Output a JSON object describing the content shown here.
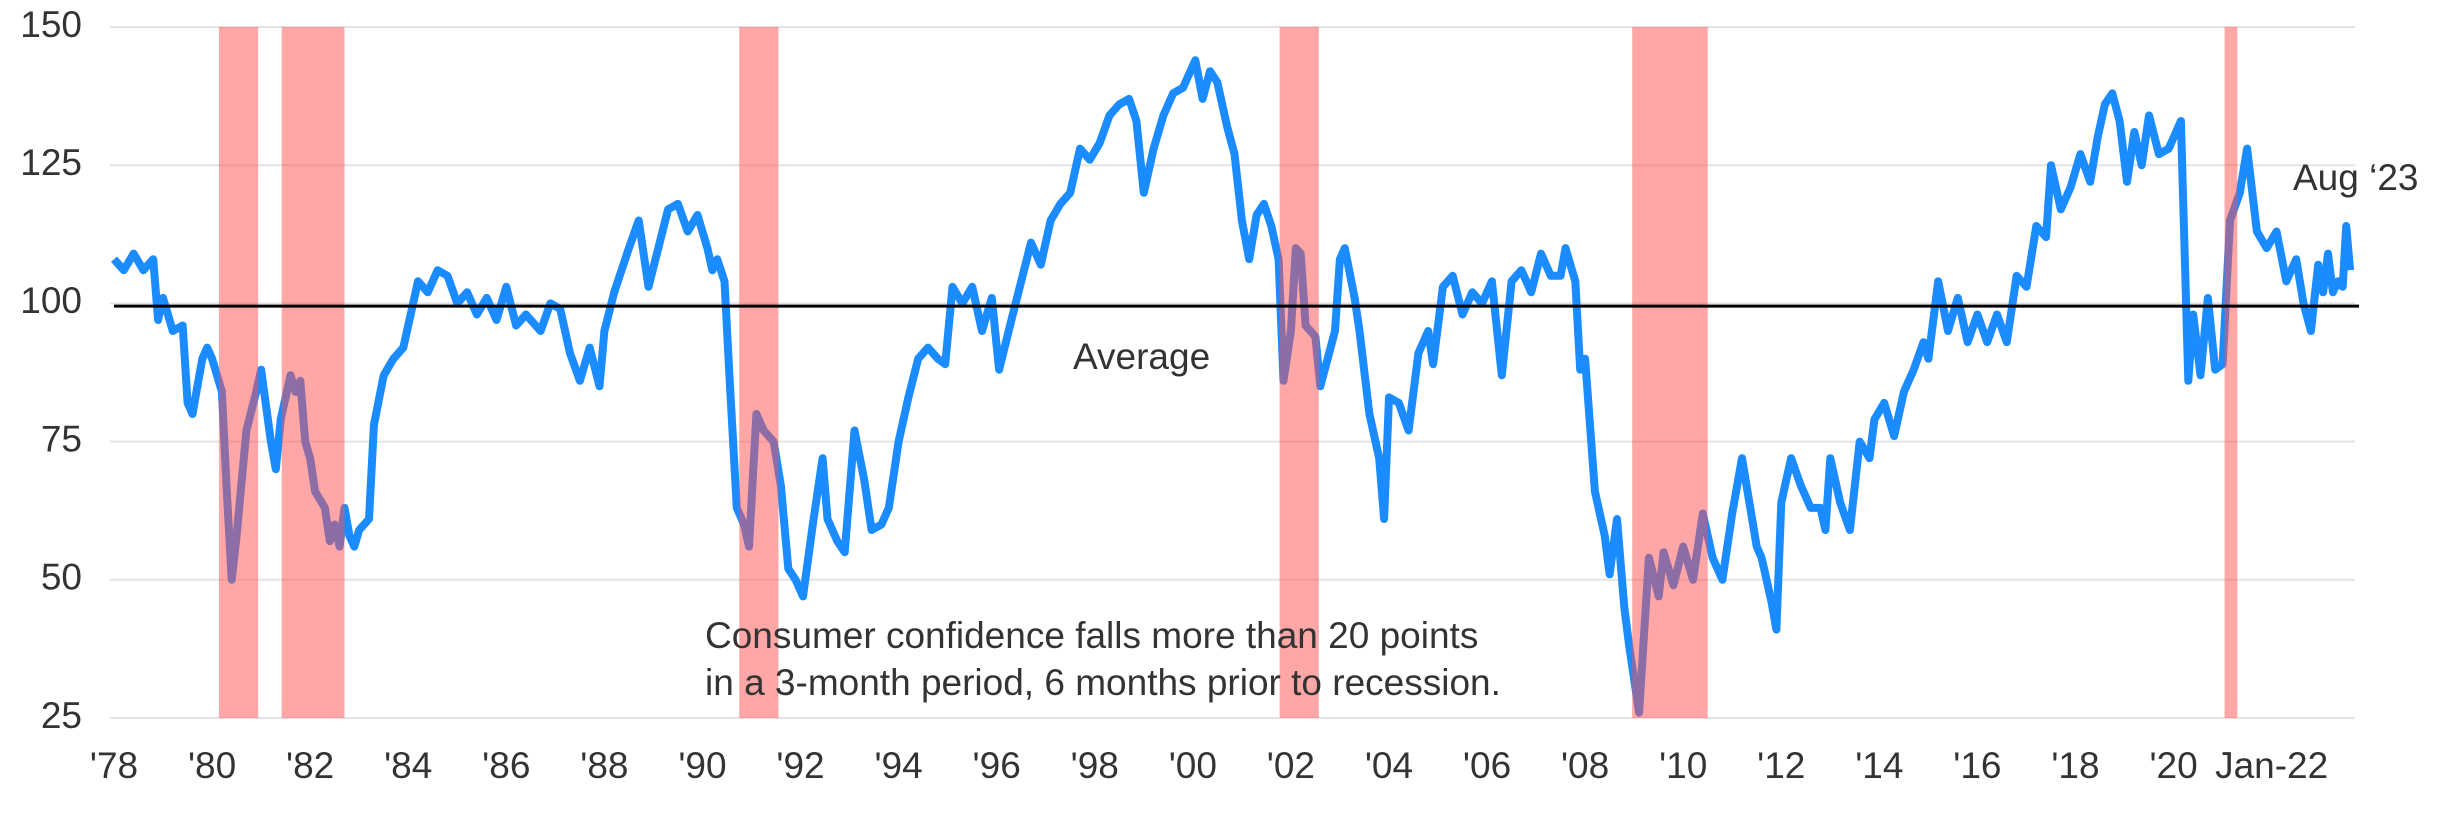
{
  "chart_data": {
    "type": "line",
    "xlim": [
      1978,
      2023.7
    ],
    "ylim": [
      25,
      150
    ],
    "yticks": [
      25,
      50,
      75,
      100,
      125,
      150
    ],
    "xticks": [
      {
        "value": 1978,
        "label": "'78"
      },
      {
        "value": 1980,
        "label": "'80"
      },
      {
        "value": 1982,
        "label": "'82"
      },
      {
        "value": 1984,
        "label": "'84"
      },
      {
        "value": 1986,
        "label": "'86"
      },
      {
        "value": 1988,
        "label": "'88"
      },
      {
        "value": 1990,
        "label": "'90"
      },
      {
        "value": 1992,
        "label": "'92"
      },
      {
        "value": 1994,
        "label": "'94"
      },
      {
        "value": 1996,
        "label": "'96"
      },
      {
        "value": 1998,
        "label": "'98"
      },
      {
        "value": 2000,
        "label": "'00"
      },
      {
        "value": 2002,
        "label": "'02"
      },
      {
        "value": 2004,
        "label": "'04"
      },
      {
        "value": 2006,
        "label": "'06"
      },
      {
        "value": 2008,
        "label": "'08"
      },
      {
        "value": 2010,
        "label": "'10"
      },
      {
        "value": 2012,
        "label": "'12"
      },
      {
        "value": 2014,
        "label": "'14"
      },
      {
        "value": 2016,
        "label": "'16"
      },
      {
        "value": 2018,
        "label": "'18"
      },
      {
        "value": 2020,
        "label": "'20"
      },
      {
        "value": 2022,
        "label": "Jan-22"
      }
    ],
    "grid": true,
    "average": {
      "value": 99.5,
      "label": "Average",
      "color": "#000000"
    },
    "recession_color": "#ff4d4d",
    "recessions": [
      [
        1980.14,
        1980.94
      ],
      [
        1981.42,
        1982.7
      ],
      [
        1990.75,
        1991.55
      ],
      [
        2001.77,
        2002.57
      ],
      [
        2008.96,
        2010.5
      ],
      [
        2021.04,
        2021.3
      ]
    ],
    "end_label": "Aug ‘23",
    "annotation": [
      "Consumer confidence falls more than 20 points",
      "in a 3-month period, 6 months prior to recession."
    ],
    "series": [
      {
        "color": "#1a8cff",
        "x": [
          1978.0,
          1978.2,
          1978.4,
          1978.6,
          1978.8,
          1978.9,
          1979.0,
          1979.2,
          1979.4,
          1979.5,
          1979.6,
          1979.8,
          1979.9,
          1980.0,
          1980.2,
          1980.3,
          1980.4,
          1980.5,
          1980.7,
          1980.9,
          1981.0,
          1981.2,
          1981.3,
          1981.4,
          1981.6,
          1981.7,
          1981.8,
          1981.9,
          1982.0,
          1982.1,
          1982.3,
          1982.4,
          1982.5,
          1982.6,
          1982.7,
          1982.8,
          1982.9,
          1983.0,
          1983.2,
          1983.3,
          1983.5,
          1983.7,
          1983.9,
          1984.1,
          1984.2,
          1984.4,
          1984.6,
          1984.8,
          1985.0,
          1985.2,
          1985.4,
          1985.6,
          1985.8,
          1986.0,
          1986.2,
          1986.4,
          1986.7,
          1986.9,
          1987.1,
          1987.3,
          1987.5,
          1987.7,
          1987.9,
          1988.0,
          1988.2,
          1988.5,
          1988.7,
          1988.9,
          1989.1,
          1989.3,
          1989.5,
          1989.7,
          1989.9,
          1990.1,
          1990.2,
          1990.3,
          1990.45,
          1990.55,
          1990.7,
          1990.85,
          1990.95,
          1991.1,
          1991.25,
          1991.45,
          1991.6,
          1991.75,
          1991.9,
          1992.05,
          1992.25,
          1992.45,
          1992.55,
          1992.75,
          1992.9,
          1993.1,
          1993.3,
          1993.45,
          1993.65,
          1993.8,
          1994.0,
          1994.2,
          1994.4,
          1994.6,
          1994.8,
          1994.95,
          1995.1,
          1995.3,
          1995.5,
          1995.7,
          1995.9,
          1996.05,
          1996.3,
          1996.5,
          1996.7,
          1996.9,
          1997.1,
          1997.3,
          1997.5,
          1997.7,
          1997.9,
          1998.1,
          1998.3,
          1998.5,
          1998.7,
          1998.85,
          1999.0,
          1999.2,
          1999.4,
          1999.6,
          1999.8,
          2000.05,
          2000.2,
          2000.35,
          2000.5,
          2000.7,
          2000.85,
          2001.0,
          2001.15,
          2001.3,
          2001.45,
          2001.6,
          2001.75,
          2001.85,
          2002.0,
          2002.1,
          2002.2,
          2002.3,
          2002.5,
          2002.6,
          2002.9,
          2003.0,
          2003.1,
          2003.3,
          2003.4,
          2003.6,
          2003.8,
          2003.9,
          2004.0,
          2004.2,
          2004.4,
          2004.6,
          2004.8,
          2004.9,
          2005.1,
          2005.3,
          2005.5,
          2005.7,
          2005.9,
          2006.1,
          2006.3,
          2006.5,
          2006.7,
          2006.9,
          2007.1,
          2007.3,
          2007.5,
          2007.6,
          2007.8,
          2007.9,
          2008.0,
          2008.2,
          2008.4,
          2008.5,
          2008.65,
          2008.8,
          2008.9,
          2009.1,
          2009.3,
          2009.5,
          2009.6,
          2009.8,
          2010.0,
          2010.2,
          2010.4,
          2010.6,
          2010.8,
          2011.0,
          2011.2,
          2011.5,
          2011.6,
          2011.8,
          2011.9,
          2012.0,
          2012.2,
          2012.4,
          2012.6,
          2012.8,
          2012.9,
          2013.0,
          2013.2,
          2013.4,
          2013.6,
          2013.8,
          2013.9,
          2014.1,
          2014.3,
          2014.5,
          2014.7,
          2014.9,
          2015.0,
          2015.2,
          2015.4,
          2015.6,
          2015.8,
          2016.0,
          2016.2,
          2016.4,
          2016.6,
          2016.8,
          2017.0,
          2017.2,
          2017.4,
          2017.5,
          2017.7,
          2017.9,
          2018.1,
          2018.3,
          2018.45,
          2018.6,
          2018.75,
          2018.9,
          2019.05,
          2019.2,
          2019.35,
          2019.5,
          2019.7,
          2019.9,
          2020.15,
          2020.3,
          2020.4,
          2020.55,
          2020.7,
          2020.85,
          2021.0,
          2021.15,
          2021.35,
          2021.5,
          2021.7,
          2021.9,
          2022.1,
          2022.3,
          2022.5,
          2022.65,
          2022.8,
          2022.95,
          2023.05,
          2023.15,
          2023.25,
          2023.35,
          2023.45,
          2023.52,
          2023.6
        ],
        "values": [
          108,
          106,
          109,
          106,
          108,
          97,
          101,
          95,
          96,
          82,
          80,
          90,
          92,
          90,
          84,
          66,
          50,
          58,
          77,
          84,
          88,
          75,
          70,
          79,
          87,
          84,
          86,
          75,
          72,
          66,
          63,
          57,
          60,
          56,
          63,
          58,
          56,
          59,
          61,
          78,
          87,
          90,
          92,
          100,
          104,
          102,
          106,
          105,
          100,
          102,
          98,
          101,
          97,
          103,
          96,
          98,
          95,
          100,
          99,
          91,
          86,
          92,
          85,
          95,
          102,
          110,
          115,
          103,
          110,
          117,
          118,
          113,
          116,
          110,
          106,
          108,
          104,
          87,
          63,
          60,
          56,
          80,
          77,
          75,
          67,
          52,
          50,
          47,
          60,
          72,
          61,
          57,
          55,
          77,
          68,
          59,
          60,
          63,
          75,
          83,
          90,
          92,
          90,
          89,
          103,
          100,
          103,
          95,
          101,
          88,
          97,
          104,
          111,
          107,
          115,
          118,
          120,
          128,
          126,
          129,
          134,
          136,
          137,
          133,
          120,
          128,
          134,
          138,
          139,
          144,
          137,
          142,
          140,
          132,
          127,
          115,
          108,
          116,
          118,
          114,
          108,
          86,
          95,
          110,
          109,
          96,
          94,
          85,
          95,
          108,
          110,
          101,
          95,
          80,
          72,
          61,
          83,
          82,
          77,
          91,
          95,
          89,
          103,
          105,
          98,
          102,
          100,
          104,
          87,
          104,
          106,
          102,
          109,
          105,
          105,
          110,
          104,
          88,
          90,
          66,
          58,
          51,
          61,
          45,
          38,
          26,
          54,
          47,
          55,
          49,
          56,
          50,
          62,
          54,
          50,
          62,
          72,
          56,
          54,
          46,
          41,
          64,
          72,
          67,
          63,
          63,
          59,
          72,
          64,
          59,
          75,
          72,
          79,
          82,
          76,
          84,
          88,
          93,
          90,
          104,
          95,
          101,
          93,
          98,
          93,
          98,
          93,
          105,
          103,
          114,
          112,
          125,
          117,
          121,
          127,
          122,
          130,
          136,
          138,
          133,
          122,
          131,
          125,
          134,
          127,
          128,
          133,
          86,
          98,
          87,
          101,
          88,
          89,
          115,
          120,
          128,
          113,
          110,
          113,
          104,
          108,
          100,
          95,
          107,
          102,
          109,
          102,
          104,
          103,
          114,
          106
        ]
      }
    ]
  }
}
